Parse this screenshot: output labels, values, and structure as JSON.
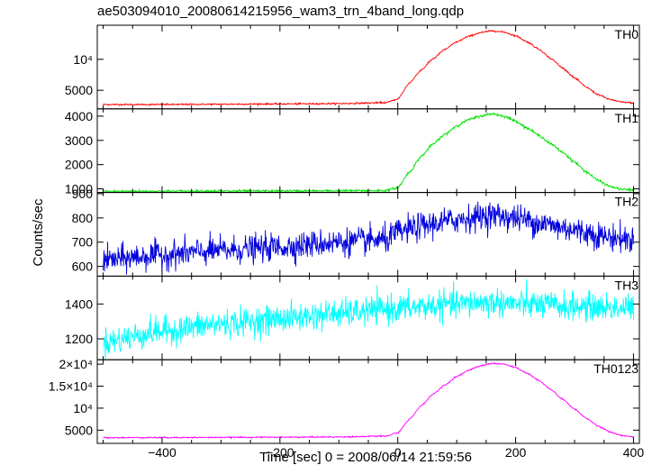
{
  "chart_data": {
    "type": "line",
    "title": "ae503094010_20080614215956_wam3_trn_4band_long.qdp",
    "xlabel": "Time [sec] 0 = 2008/06/14 21:59:56",
    "ylabel": "Counts/sec",
    "xlim": [
      -510,
      410
    ],
    "x_ticks": [
      -400,
      -200,
      0,
      200,
      400
    ],
    "x_tick_labels": [
      "−400",
      "−200",
      "0",
      "200",
      "400"
    ],
    "panels": [
      {
        "name": "TH0",
        "color": "#ff0000",
        "ylim": [
          2000,
          15500
        ],
        "y_ticks": [
          5000,
          10000
        ],
        "y_tick_labels": [
          "5000",
          "10⁴"
        ],
        "x": [
          -500,
          -400,
          -300,
          -200,
          -100,
          -20,
          0,
          20,
          40,
          60,
          80,
          100,
          120,
          140,
          160,
          180,
          200,
          220,
          240,
          260,
          280,
          300,
          320,
          340,
          360,
          380,
          400
        ],
        "y": [
          2700,
          2700,
          2750,
          2800,
          2850,
          3000,
          3600,
          6200,
          8300,
          10100,
          11600,
          12800,
          13700,
          14300,
          14600,
          14400,
          13800,
          12800,
          11600,
          10100,
          8600,
          7000,
          5500,
          4300,
          3500,
          3100,
          2950
        ],
        "noise": 60
      },
      {
        "name": "TH1",
        "color": "#00e000",
        "ylim": [
          850,
          4300
        ],
        "y_ticks": [
          1000,
          2000,
          3000,
          4000
        ],
        "y_tick_labels": [
          "1000",
          "2000",
          "3000",
          "4000"
        ],
        "x": [
          -500,
          -400,
          -300,
          -200,
          -100,
          -20,
          0,
          20,
          40,
          60,
          80,
          100,
          120,
          140,
          160,
          180,
          200,
          220,
          240,
          260,
          280,
          300,
          320,
          340,
          360,
          380,
          400
        ],
        "y": [
          900,
          900,
          905,
          910,
          915,
          930,
          1050,
          1700,
          2350,
          2850,
          3250,
          3600,
          3850,
          4000,
          4100,
          4000,
          3800,
          3500,
          3200,
          2850,
          2500,
          2100,
          1700,
          1350,
          1100,
          980,
          950
        ],
        "noise": 25
      },
      {
        "name": "TH2",
        "color": "#0000dd",
        "ylim": [
          560,
          905
        ],
        "y_ticks": [
          600,
          700,
          800,
          900
        ],
        "y_tick_labels": [
          "600",
          "700",
          "800",
          "900"
        ],
        "x": [
          -500,
          -400,
          -300,
          -200,
          -100,
          -20,
          0,
          40,
          80,
          120,
          160,
          200,
          240,
          280,
          320,
          360,
          400
        ],
        "y": [
          625,
          648,
          665,
          680,
          700,
          710,
          740,
          765,
          785,
          800,
          812,
          800,
          780,
          760,
          740,
          720,
          710
        ],
        "noise": 28
      },
      {
        "name": "TH3",
        "color": "#00ffff",
        "ylim": [
          1080,
          1560
        ],
        "y_ticks": [
          1200,
          1400
        ],
        "y_tick_labels": [
          "1200",
          "1400"
        ],
        "x": [
          -500,
          -400,
          -300,
          -200,
          -100,
          0,
          100,
          160,
          200,
          300,
          400
        ],
        "y": [
          1180,
          1245,
          1285,
          1315,
          1345,
          1375,
          1400,
          1410,
          1400,
          1385,
          1375
        ],
        "noise": 40
      },
      {
        "name": "TH0123",
        "color": "#ff00ff",
        "ylim": [
          2000,
          21000
        ],
        "y_ticks": [
          5000,
          10000,
          15000,
          20000
        ],
        "y_tick_labels": [
          "5000",
          "10⁴",
          "1.5×10⁴",
          "2×10⁴"
        ],
        "x": [
          -500,
          -400,
          -300,
          -200,
          -100,
          -20,
          0,
          20,
          40,
          60,
          80,
          100,
          120,
          140,
          160,
          180,
          200,
          220,
          240,
          260,
          280,
          300,
          320,
          340,
          360,
          380,
          400
        ],
        "y": [
          3300,
          3320,
          3360,
          3400,
          3460,
          3650,
          4400,
          7500,
          10600,
          13200,
          15300,
          17200,
          18600,
          19600,
          20200,
          20000,
          19200,
          17900,
          16200,
          14200,
          12000,
          9800,
          7700,
          5900,
          4600,
          3800,
          3500
        ],
        "noise": 70
      }
    ]
  }
}
